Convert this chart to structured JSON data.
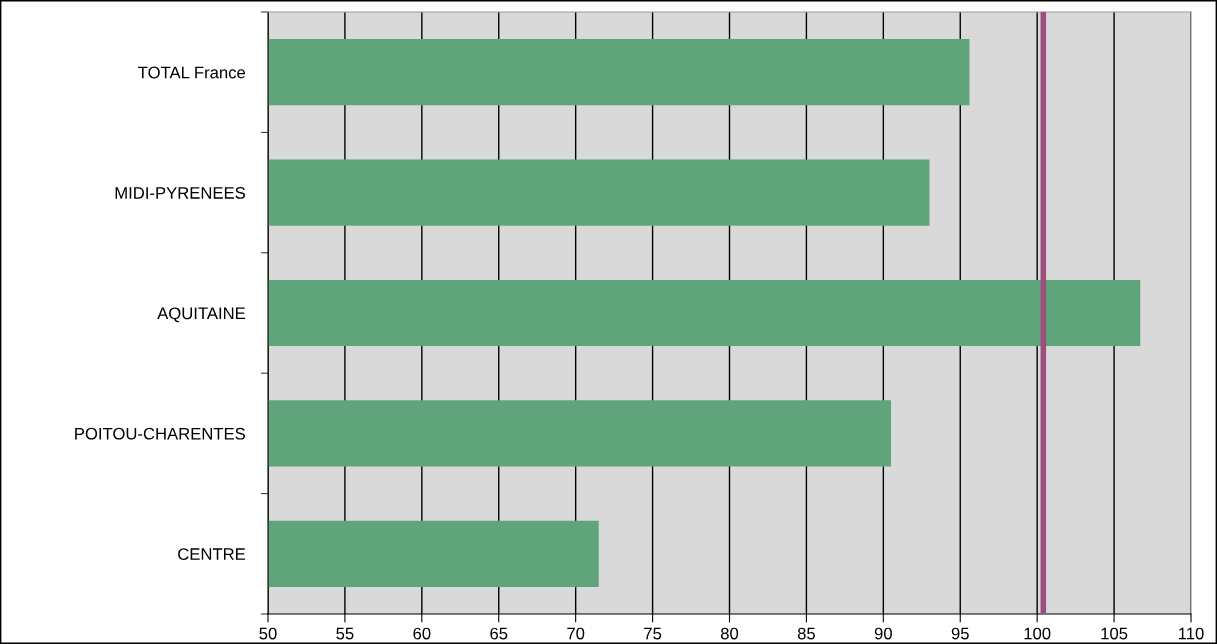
{
  "chart_data": {
    "type": "bar",
    "orientation": "horizontal",
    "categories": [
      "TOTAL France",
      "MIDI-PYRENEES",
      "AQUITAINE",
      "POITOU-CHARENTES",
      "CENTRE"
    ],
    "values": [
      95.6,
      93.0,
      106.7,
      90.5,
      71.5
    ],
    "color": "#5fa47a",
    "xlim": [
      50,
      110
    ],
    "xticks": [
      50,
      55,
      60,
      65,
      70,
      75,
      80,
      85,
      90,
      95,
      100,
      105,
      110
    ],
    "grid": "x",
    "ref_lines": [
      {
        "axis": "x",
        "value": 100.4,
        "color": "#9c4f7f"
      }
    ]
  }
}
